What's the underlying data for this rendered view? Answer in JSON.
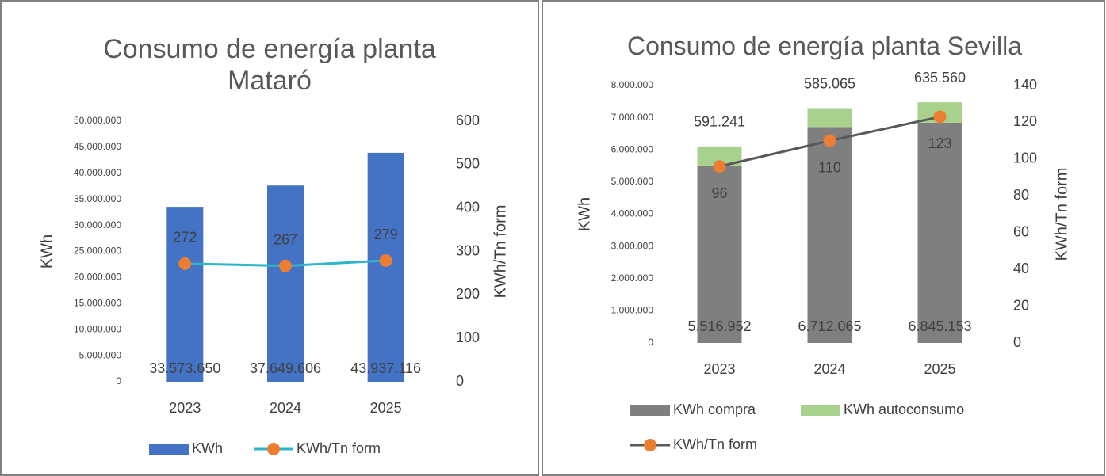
{
  "chart_data": [
    {
      "type": "bar",
      "title": "Consumo de energía planta Mataró",
      "categories": [
        "2023",
        "2024",
        "2025"
      ],
      "series": [
        {
          "name": "KWh",
          "color": "#4472c4",
          "axis": "y",
          "values": [
            33573650,
            37649606,
            43937116
          ],
          "value_labels": [
            "33.573.650",
            "37.649.606",
            "43.937.116"
          ]
        },
        {
          "name": "KWh/Tn form",
          "color": "#2eb5c8",
          "marker_color": "#ed7d31",
          "type": "line",
          "axis": "y2",
          "values": [
            272,
            267,
            279
          ]
        }
      ],
      "ylabel": "KWh",
      "y2label": "KWh/Tn form",
      "ylim": [
        0,
        50000000
      ],
      "yticks": [
        0,
        {
          "value": 5000000,
          "label": "5.000.000"
        },
        {
          "value": 10000000,
          "label": "10.000.000"
        },
        {
          "value": 15000000,
          "label": "15.000.000"
        },
        {
          "value": 20000000,
          "label": "20.000.000"
        },
        {
          "value": 25000000,
          "label": "25.000.000"
        },
        {
          "value": 30000000,
          "label": "30.000.000"
        },
        {
          "value": 35000000,
          "label": "35.000.000"
        },
        {
          "value": 40000000,
          "label": "40.000.000"
        },
        {
          "value": 45000000,
          "label": "45.000.000"
        },
        {
          "value": 50000000,
          "label": "50.000.000"
        }
      ],
      "y2lim": [
        0,
        600
      ],
      "y2ticks": [
        0,
        100,
        200,
        300,
        400,
        500,
        600
      ]
    },
    {
      "type": "bar",
      "title": "Consumo de energía planta Sevilla",
      "stacked": true,
      "categories": [
        "2023",
        "2024",
        "2025"
      ],
      "series": [
        {
          "name": "KWh compra",
          "color": "#7f7f7f",
          "axis": "y",
          "values": [
            5516952,
            6712065,
            6845153
          ],
          "value_labels": [
            "5.516.952",
            "6.712.065",
            "6.845.153"
          ]
        },
        {
          "name": "KWh autoconsumo",
          "color": "#a9d18e",
          "axis": "y",
          "values": [
            591241,
            585065,
            635560
          ],
          "value_labels": [
            "591.241",
            "585.065",
            "635.560"
          ]
        },
        {
          "name": "KWh/Tn form",
          "color": "#595959",
          "marker_color": "#ed7d31",
          "type": "line",
          "axis": "y2",
          "values": [
            96,
            110,
            123
          ]
        }
      ],
      "ylabel": "KWh",
      "y2label": "KWh/Tn form",
      "ylim": [
        0,
        8000000
      ],
      "yticks": [
        0,
        {
          "value": 1000000,
          "label": "1.000.000"
        },
        {
          "value": 2000000,
          "label": "2.000.000"
        },
        {
          "value": 3000000,
          "label": "3.000.000"
        },
        {
          "value": 4000000,
          "label": "4.000.000"
        },
        {
          "value": 5000000,
          "label": "5.000.000"
        },
        {
          "value": 6000000,
          "label": "6.000.000"
        },
        {
          "value": 7000000,
          "label": "7.000.000"
        },
        {
          "value": 8000000,
          "label": "8.000.000"
        }
      ],
      "y2lim": [
        0,
        140
      ],
      "y2ticks": [
        0,
        20,
        40,
        60,
        80,
        100,
        120,
        140
      ]
    }
  ]
}
